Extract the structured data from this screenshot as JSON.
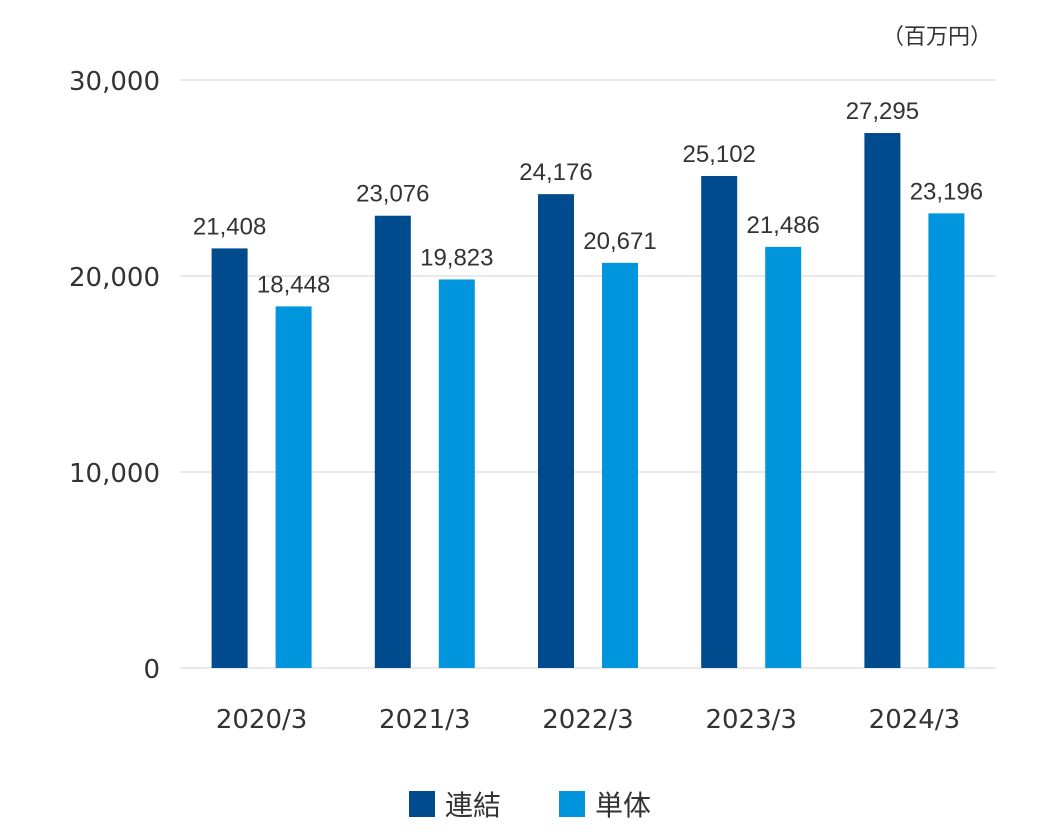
{
  "chart_data": {
    "type": "bar",
    "title": "",
    "unit": "（百万円）",
    "xlabel": "",
    "ylabel": "",
    "categories": [
      "2020/3",
      "2021/3",
      "2022/3",
      "2023/3",
      "2024/3"
    ],
    "series": [
      {
        "name": "連結",
        "color": "#004b8d",
        "values": [
          21408,
          23076,
          24176,
          25102,
          27295
        ],
        "labels": [
          "21,408",
          "23,076",
          "24,176",
          "25,102",
          "27,295"
        ]
      },
      {
        "name": "単体",
        "color": "#0095dd",
        "values": [
          18448,
          19823,
          20671,
          21486,
          23196
        ],
        "labels": [
          "18,448",
          "19,823",
          "20,671",
          "21,486",
          "23,196"
        ]
      }
    ],
    "yticks": [
      0,
      10000,
      20000,
      30000
    ],
    "ytick_labels": [
      "0",
      "10,000",
      "20,000",
      "30,000"
    ],
    "ylim": [
      0,
      30000
    ],
    "grid": true,
    "legend_position": "bottom"
  }
}
